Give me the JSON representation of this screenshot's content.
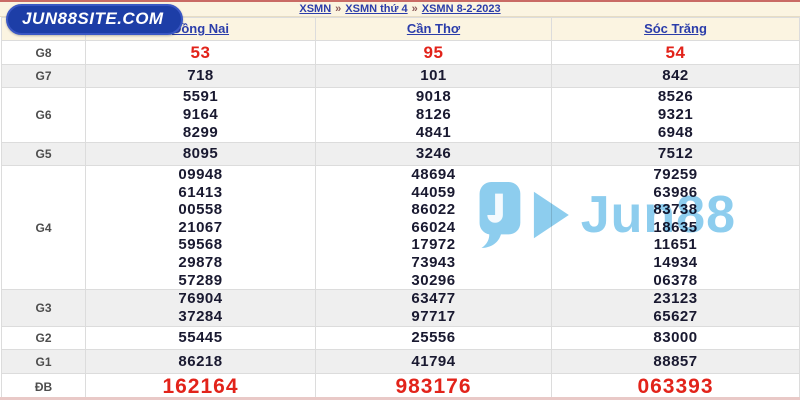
{
  "badge": {
    "label": "JUN88SITE.COM"
  },
  "breadcrumb": {
    "separator": "»",
    "items": [
      {
        "label": "XSMN"
      },
      {
        "label": "XSMN thứ 4"
      },
      {
        "label": "XSMN 8-2-2023"
      }
    ]
  },
  "watermark": {
    "text": "Jun88"
  },
  "colors": {
    "accent_red": "#e2231a",
    "link_blue": "#2b3daa",
    "badge_blue": "#1d3ea7",
    "watermark_blue": "#8dcdee",
    "row_alt_gray": "#efefef",
    "header_cream": "#fbf4e1"
  },
  "table": {
    "columns": [
      "Đồng Nai",
      "Cần Thơ",
      "Sóc Trăng"
    ],
    "rows": [
      {
        "label": "G8",
        "style": "red",
        "cells": [
          [
            "53"
          ],
          [
            "95"
          ],
          [
            "54"
          ]
        ]
      },
      {
        "label": "G7",
        "style": "",
        "cells": [
          [
            "718"
          ],
          [
            "101"
          ],
          [
            "842"
          ]
        ]
      },
      {
        "label": "G6",
        "style": "",
        "cells": [
          [
            "5591",
            "9164",
            "8299"
          ],
          [
            "9018",
            "8126",
            "4841"
          ],
          [
            "8526",
            "9321",
            "6948"
          ]
        ]
      },
      {
        "label": "G5",
        "style": "",
        "cells": [
          [
            "8095"
          ],
          [
            "3246"
          ],
          [
            "7512"
          ]
        ]
      },
      {
        "label": "G4",
        "style": "",
        "cells": [
          [
            "09948",
            "61413",
            "00558",
            "21067",
            "59568",
            "29878",
            "57289"
          ],
          [
            "48694",
            "44059",
            "86022",
            "66024",
            "17972",
            "73943",
            "30296"
          ],
          [
            "79259",
            "63986",
            "83738",
            "18635",
            "11651",
            "14934",
            "06378"
          ]
        ]
      },
      {
        "label": "G3",
        "style": "",
        "cells": [
          [
            "76904",
            "37284"
          ],
          [
            "63477",
            "97717"
          ],
          [
            "23123",
            "65627"
          ]
        ]
      },
      {
        "label": "G2",
        "style": "",
        "cells": [
          [
            "55445"
          ],
          [
            "25556"
          ],
          [
            "83000"
          ]
        ]
      },
      {
        "label": "G1",
        "style": "",
        "cells": [
          [
            "86218"
          ],
          [
            "41794"
          ],
          [
            "88857"
          ]
        ]
      },
      {
        "label": "ĐB",
        "style": "red-large",
        "cells": [
          [
            "162164"
          ],
          [
            "983176"
          ],
          [
            "063393"
          ]
        ]
      }
    ]
  }
}
